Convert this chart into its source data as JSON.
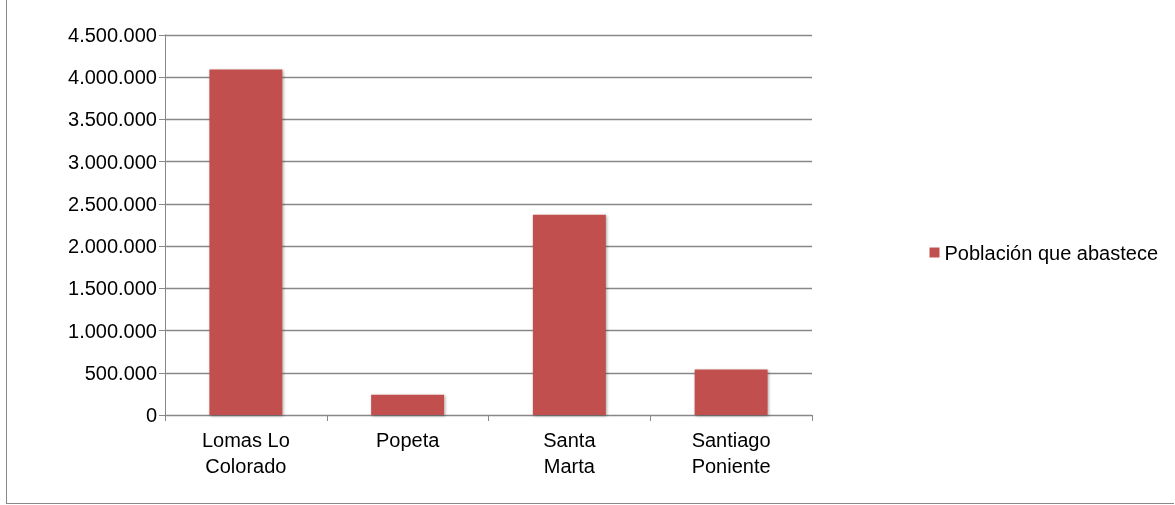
{
  "chart_data": {
    "type": "bar",
    "categories": [
      "Lomas Lo Colorado",
      "Popeta",
      "Santa Marta",
      "Santiago Poniente"
    ],
    "series": [
      {
        "name": "Población que abastece",
        "color": "#c0504d",
        "values": [
          4090000,
          240000,
          2370000,
          540000
        ]
      }
    ],
    "ylim": [
      0,
      4500000
    ],
    "yticks": [
      0,
      {
        "value": 500000,
        "label": "500.000"
      },
      {
        "value": 1000000,
        "label": "1.000.000"
      },
      {
        "value": 1500000,
        "label": "1.500.000"
      },
      {
        "value": 2000000,
        "label": "2.000.000"
      },
      {
        "value": 2500000,
        "label": "2.500.000"
      },
      {
        "value": 3000000,
        "label": "3.000.000"
      },
      {
        "value": 3500000,
        "label": "3.500.000"
      },
      {
        "value": 4000000,
        "label": "4.000.000"
      },
      {
        "value": 4500000,
        "label": "4.500.000"
      }
    ],
    "grid": "y",
    "legend": "right"
  }
}
